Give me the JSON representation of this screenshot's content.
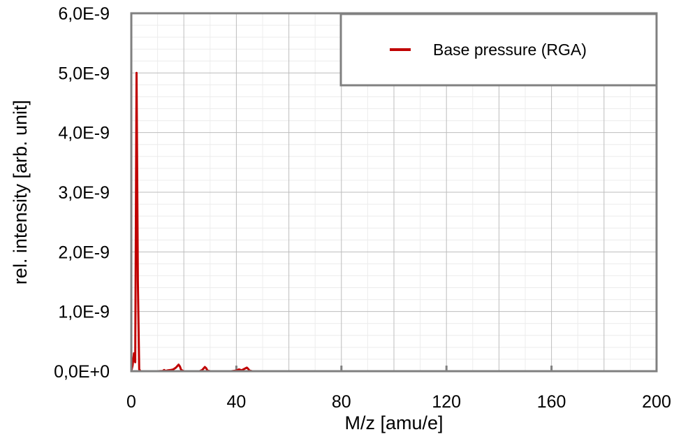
{
  "chart_data": {
    "type": "line",
    "title": "",
    "xlabel": "M/z [amu/e]",
    "ylabel": "rel. intensity [arb. unit]",
    "xlim": [
      0,
      200
    ],
    "ylim": [
      0,
      6e-09
    ],
    "x_ticks": [
      0,
      40,
      80,
      120,
      160,
      200
    ],
    "x_tick_labels": [
      "0",
      "40",
      "80",
      "120",
      "160",
      "200"
    ],
    "y_ticks": [
      0,
      1e-09,
      2e-09,
      3e-09,
      4e-09,
      5e-09,
      6e-09
    ],
    "y_tick_labels": [
      "0,0E+0",
      "1,0E-9",
      "2,0E-9",
      "3,0E-9",
      "4,0E-9",
      "5,0E-9",
      "6,0E-9"
    ],
    "grid": true,
    "legend_position": "top-right",
    "series": [
      {
        "name": "Base pressure (RGA)",
        "color": "#c00000",
        "x": [
          0,
          0.5,
          1,
          1.5,
          2,
          2.5,
          3,
          3.5,
          4,
          10,
          12,
          12.5,
          13,
          14,
          15,
          16,
          17,
          18,
          18.5,
          19,
          20,
          26,
          27,
          28,
          28.5,
          29,
          30,
          38,
          40,
          41,
          42,
          44,
          44.5,
          45,
          46,
          60,
          80,
          100,
          120,
          140,
          160,
          180,
          200
        ],
        "y": [
          0,
          1e-10,
          3e-10,
          1.5e-10,
          5e-09,
          1.5e-09,
          3e-11,
          0,
          0,
          0,
          5e-12,
          2e-11,
          5e-12,
          1.5e-11,
          2e-11,
          3e-11,
          6e-11,
          1.1e-10,
          8e-11,
          2e-11,
          0,
          0,
          2e-11,
          7e-11,
          5e-11,
          1e-11,
          0,
          0,
          1e-11,
          3e-11,
          1.5e-11,
          6e-11,
          4e-11,
          1e-11,
          0,
          0,
          0,
          0,
          0,
          0,
          0,
          0,
          0
        ]
      }
    ]
  }
}
